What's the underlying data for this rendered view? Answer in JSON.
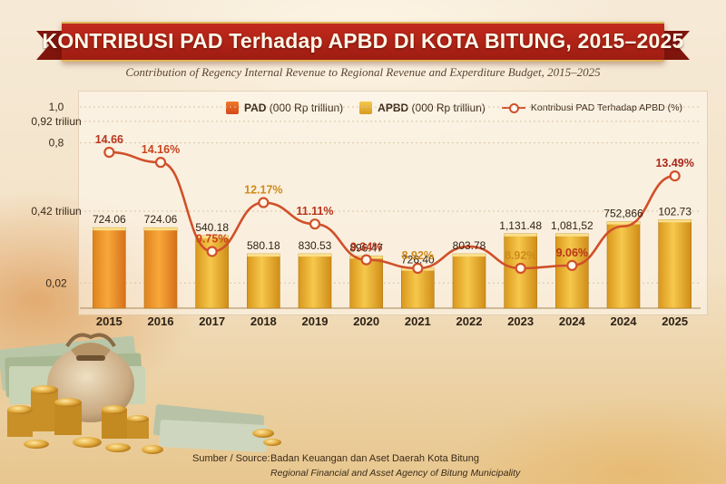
{
  "title": "KONTRIBUSI PAD Terhadap APBD DI KOTA BITUNG, 2015–2025",
  "subtitle": "Contribution of Regency Internal Revenue to Regional Revenue and Experditure Budget, 2015–2025",
  "legend": {
    "pad_bold": "PAD",
    "pad_unit": "(000 Rp trilliun)",
    "apbd_bold": "APBD",
    "apbd_unit": "(000 Rp trilliun)",
    "line_label": "Kontribusi PAD Terhadap APBD (%)"
  },
  "source": {
    "label": "Sumber / Source:",
    "line1": "Badan Keuangan dan Aset Daerah Kota Bitung",
    "line2": "Regional Financial and Asset Agency of Bitung Municipality"
  },
  "colors": {
    "pad": "#e5621f",
    "apbd": "#e8b234",
    "line": "#d0502a",
    "ribbon": "#b4231a"
  },
  "chart_data": {
    "type": "bar",
    "y_ticks": [
      "1,0",
      "0,92 triliun",
      "0,8",
      "0,42 triliun",
      "0,02"
    ],
    "y_tick_values": [
      1.0,
      0.92,
      0.8,
      0.42,
      0.02
    ],
    "ylim": [
      -0.12,
      1.0
    ],
    "grid": true,
    "legend_position": "top-right",
    "categories": [
      "2015",
      "2016",
      "2017",
      "2018",
      "2019",
      "2020",
      "2021",
      "2022",
      "2023",
      "2024",
      "2024",
      "2025"
    ],
    "series": [
      {
        "name": "APBD (000 Rp trilliun)",
        "kind": "bar",
        "value_labels": [
          "724.06",
          "724.06",
          "540.18",
          "580.18",
          "830.53",
          "896.47",
          "726.40",
          "803.78",
          "1,131.48",
          "1,081,52",
          "752,866",
          "102.73"
        ],
        "bar_level": [
          0.4,
          0.4,
          0.36,
          0.27,
          0.27,
          0.26,
          0.2,
          0.27,
          0.37,
          0.37,
          0.43,
          0.44
        ],
        "highlight_pad": [
          true,
          true,
          false,
          false,
          false,
          false,
          false,
          false,
          false,
          false,
          false,
          false
        ]
      },
      {
        "name": "Kontribusi PAD Terhadap APBD (%)",
        "kind": "line",
        "value_labels": [
          "14.66",
          "14.16%",
          "9.75%",
          "12.17%",
          "11.11%",
          "9.34%",
          "8.92%",
          "",
          "8.92%",
          "9.06%",
          "",
          "13.49%"
        ],
        "values": [
          14.66,
          14.16,
          9.75,
          12.17,
          11.11,
          9.34,
          8.92,
          10.0,
          8.92,
          9.06,
          11.0,
          13.49
        ]
      }
    ]
  }
}
